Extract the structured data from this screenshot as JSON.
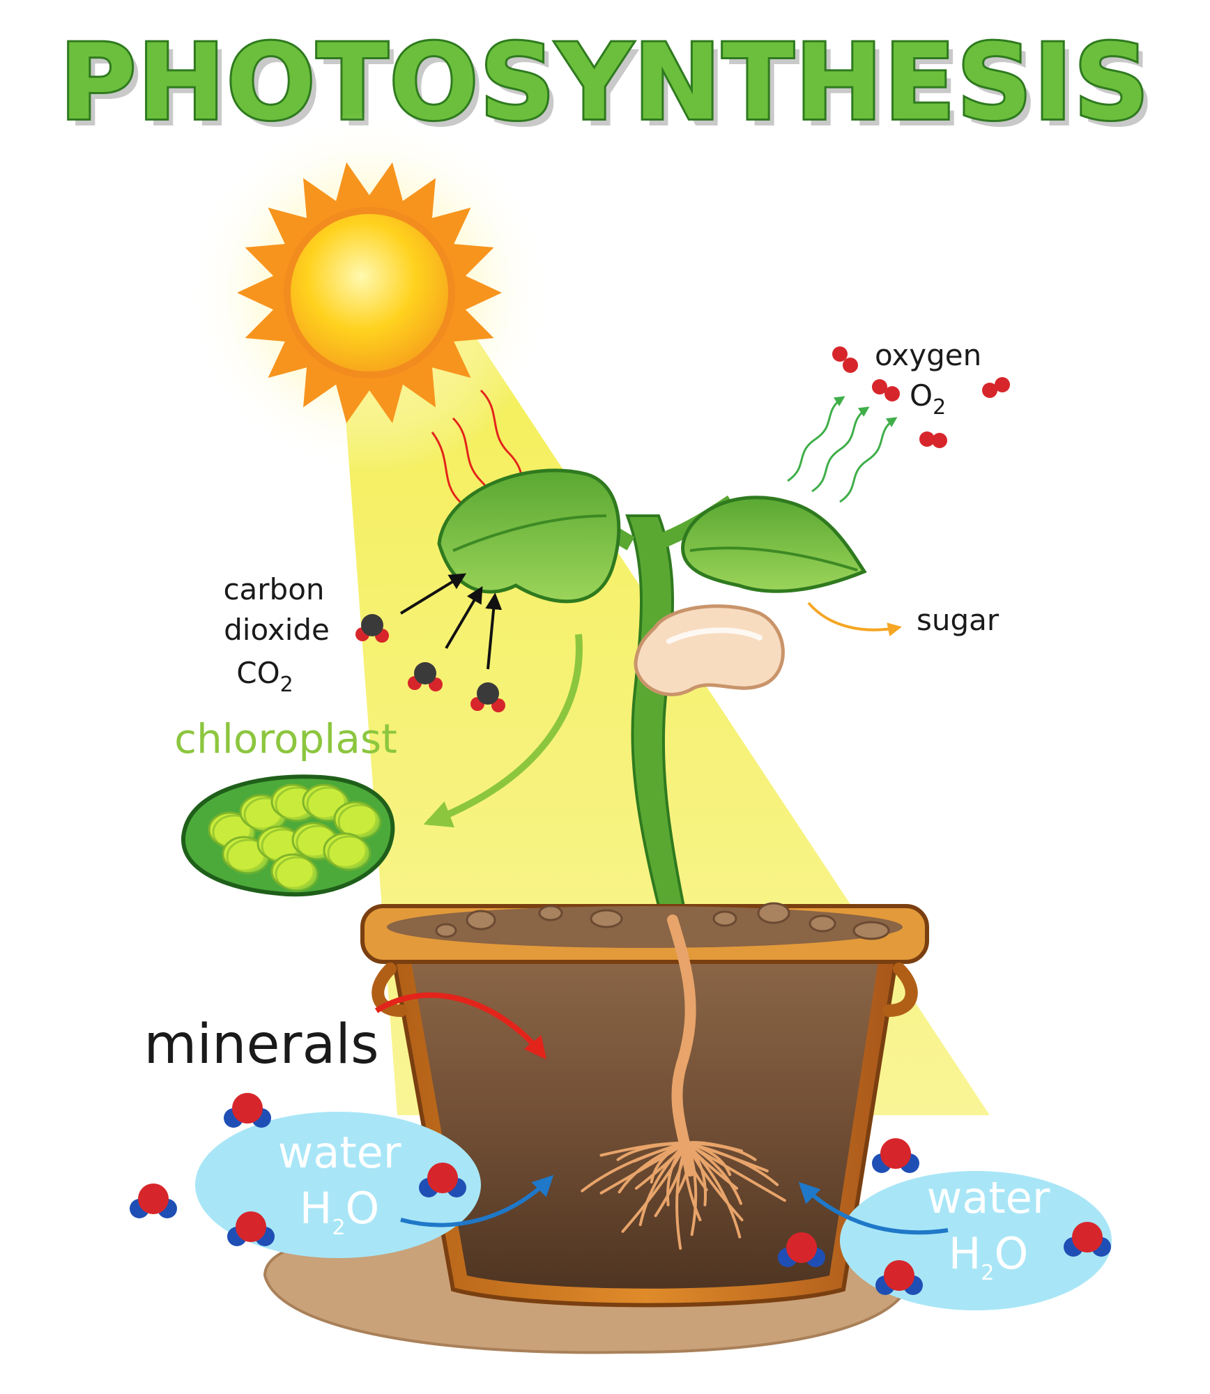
{
  "title": "PHOTOSYNTHESIS",
  "labels": {
    "oxygen": "oxygen",
    "o2_main": "O",
    "o2_sub": "2",
    "carbon": "carbon",
    "dioxide": "dioxide",
    "co2_main": "CO",
    "co2_sub": "2",
    "sugar": "sugar",
    "chloroplast": "chloroplast",
    "minerals": "minerals",
    "water_left": "water",
    "h2o_left_h": "H",
    "h2o_left_sub": "2",
    "h2o_left_o": "O",
    "water_right": "water",
    "h2o_right_h": "H",
    "h2o_right_sub": "2",
    "h2o_right_o": "O"
  },
  "colors": {
    "title_fill": "#6cbf3c",
    "title_stroke": "#2f7a1f",
    "chloroplast_label": "#8cc63f",
    "sun_light": "#f7f06a",
    "water_bubble": "#a8e6f7",
    "soil": "#6b4a32",
    "pot": "#c8731e"
  }
}
